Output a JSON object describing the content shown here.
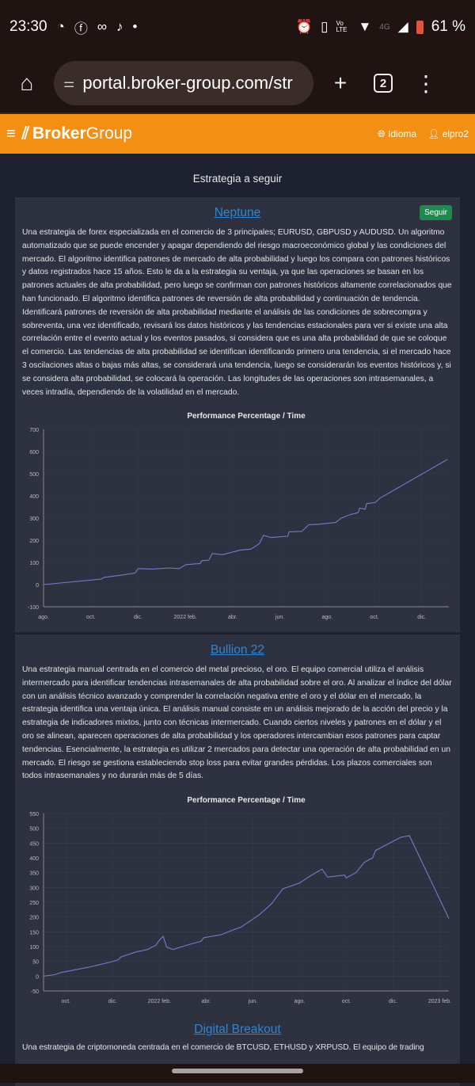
{
  "status_bar": {
    "time": "23:30",
    "battery": "61 %",
    "network": "4G",
    "volte": "Vo LTE"
  },
  "browser": {
    "url": "portal.broker-group.com/str",
    "tab_count": "2"
  },
  "header": {
    "brand_bold": "Broker",
    "brand_light": "Group",
    "language": "Idioma",
    "user": "elpro2"
  },
  "page_title": "Estrategia a seguir",
  "strategies": [
    {
      "name": "Neptune",
      "follow_label": "Seguir",
      "description": "Una estrategia de forex especializada en el comercio de 3 principales; EURUSD, GBPUSD y AUDUSD. Un algoritmo automatizado que se puede encender y apagar dependiendo del riesgo macroeconómico global y las condiciones del mercado. El algoritmo identifica patrones de mercado de alta probabilidad y luego los compara con patrones históricos y datos registrados hace 15 años. Esto le da a la estrategia su ventaja, ya que las operaciones se basan en los patrones actuales de alta probabilidad, pero luego se confirman con patrones históricos altamente correlacionados que han funcionado. El algoritmo identifica patrones de reversión de alta probabilidad y continuación de tendencia. Identificará patrones de reversión de alta probabilidad mediante el análisis de las condiciones de sobrecompra y sobreventa, una vez identificado, revisará los datos históricos y las tendencias estacionales para ver si existe una alta correlación entre el evento actual y los eventos pasados, si considera que es una alta probabilidad de que se coloque el comercio. Las tendencias de alta probabilidad se identifican identificando primero una tendencia, si el mercado hace 3 oscilaciones altas o bajas más altas, se considerará una tendencia, luego se considerarán los eventos históricos y, si se considera alta probabilidad, se colocará la operación. Las longitudes de las operaciones son intrasemanales, a veces intradía, dependiendo de la volatilidad en el mercado."
    },
    {
      "name": "Bullion 22",
      "description": "Una estrategia manual centrada en el comercio del metal precioso, el oro. El equipo comercial utiliza el análisis intermercado para identificar tendencias intrasemanales de alta probabilidad sobre el oro. Al analizar el índice del dólar con un análisis técnico avanzado y comprender la correlación negativa entre el oro y el dólar en el mercado, la estrategia identifica una ventaja única. El análisis manual consiste en un análisis mejorado de la acción del precio y la estrategia de indicadores mixtos, junto con técnicas intermercado. Cuando ciertos niveles y patrones en el dólar y el oro se alinean, aparecen operaciones de alta probabilidad y los operadores intercambian esos patrones para captar tendencias. Esencialmente, la estrategia es utilizar 2 mercados para detectar una operación de alta probabilidad en un mercado. El riesgo se gestiona estableciendo stop loss para evitar grandes pérdidas. Los plazos comerciales son todos intrasemanales y no durarán más de 5 días."
    },
    {
      "name": "Digital Breakout",
      "description": "Una estrategia de criptomoneda centrada en el comercio de BTCUSD, ETHUSD y XRPUSD. El equipo de trading"
    }
  ],
  "chart_data": [
    {
      "type": "line",
      "title": "Performance Percentage / Time",
      "xlabel": "",
      "ylabel": "",
      "x_unit": "months since Aug 2021",
      "ylim": [
        -100,
        700
      ],
      "yticks": [
        700,
        600,
        500,
        400,
        300,
        200,
        100,
        0,
        -100
      ],
      "xlim": [
        0,
        17.15
      ],
      "xticks": [
        {
          "label": "ago.",
          "x": 0
        },
        {
          "label": "oct.",
          "x": 2
        },
        {
          "label": "dic.",
          "x": 4
        },
        {
          "label": "2022 feb.",
          "x": 6
        },
        {
          "label": "abr.",
          "x": 8
        },
        {
          "label": "jun.",
          "x": 10
        },
        {
          "label": "ago.",
          "x": 12
        },
        {
          "label": "oct.",
          "x": 14
        },
        {
          "label": "dic.",
          "x": 16
        }
      ],
      "color": "#7b78c8",
      "grid": true,
      "x": [
        0,
        1.97,
        2.45,
        2.57,
        3.28,
        3.88,
        4.0,
        4.6,
        5.31,
        5.73,
        6.03,
        6.63,
        6.69,
        6.99,
        7.14,
        7.58,
        8.3,
        8.78,
        9.13,
        9.31,
        9.61,
        10.33,
        10.39,
        10.93,
        11.22,
        11.64,
        12.36,
        12.6,
        12.96,
        13.31,
        13.37,
        13.61,
        13.67,
        14.03,
        14.24,
        17.1
      ],
      "y": [
        0,
        20,
        25,
        33,
        42,
        52,
        72,
        70,
        75,
        72,
        90,
        95,
        108,
        110,
        140,
        135,
        155,
        160,
        185,
        222,
        212,
        218,
        238,
        240,
        270,
        272,
        280,
        300,
        315,
        325,
        345,
        340,
        365,
        370,
        390,
        565
      ]
    },
    {
      "type": "line",
      "title": "Performance Percentage / Time",
      "xlabel": "",
      "ylabel": "",
      "x_unit": "months since Oct 2021",
      "ylim": [
        -50,
        550
      ],
      "yticks": [
        550,
        500,
        450,
        400,
        350,
        300,
        250,
        200,
        150,
        100,
        50,
        0,
        -50
      ],
      "xlim": [
        -0.96,
        16.39
      ],
      "xticks": [
        {
          "label": "oct.",
          "x": 0
        },
        {
          "label": "dic.",
          "x": 2
        },
        {
          "label": "2022 feb.",
          "x": 4
        },
        {
          "label": "abr.",
          "x": 6
        },
        {
          "label": "jun.",
          "x": 8
        },
        {
          "label": "ago.",
          "x": 10
        },
        {
          "label": "oct.",
          "x": 12
        },
        {
          "label": "dic.",
          "x": 14
        },
        {
          "label": "2023 feb.",
          "x": 16
        }
      ],
      "color": "#7b78c8",
      "grid": true,
      "x": [
        -0.96,
        -0.48,
        -0.24,
        0.96,
        1.93,
        2.23,
        2.35,
        3.01,
        3.49,
        3.86,
        3.98,
        4.16,
        4.31,
        4.58,
        4.58,
        5.18,
        5.78,
        5.9,
        6.63,
        7.11,
        7.47,
        7.95,
        8.31,
        8.8,
        9.28,
        10.0,
        10.48,
        10.96,
        11.2,
        11.93,
        11.99,
        12.41,
        12.77,
        13.13,
        13.25,
        14.34,
        14.7,
        16.39
      ],
      "y": [
        0,
        5,
        12,
        30,
        48,
        55,
        65,
        82,
        90,
        105,
        120,
        135,
        98,
        90,
        90,
        105,
        118,
        130,
        140,
        155,
        165,
        190,
        210,
        245,
        295,
        315,
        340,
        362,
        335,
        342,
        332,
        350,
        385,
        400,
        425,
        470,
        475,
        195
      ]
    }
  ]
}
